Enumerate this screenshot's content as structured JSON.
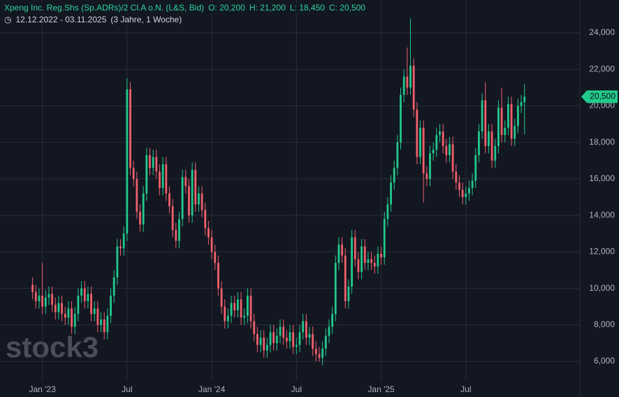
{
  "chart_data": {
    "type": "candlestick",
    "title": "Xpeng Inc. Reg.Shs (Sp.ADRs)/2 Cl.A  o.N. (L&S, Bid)",
    "ohlc_labels": [
      "O: 20,200",
      "H: 21,200",
      "L: 18,450",
      "C: 20,500"
    ],
    "period": "12.12.2022 - 03.11.2025",
    "period_note": "(3 Jahre, 1 Woche)",
    "watermark": "stock3",
    "last_price": {
      "value": 20500,
      "label": "20,500"
    },
    "up_color": "#22c98b",
    "down_color": "#f0606a",
    "grid": true,
    "ylim": [
      4050,
      25800
    ],
    "yticks": [
      {
        "value": 6000,
        "label": "6,000"
      },
      {
        "value": 8000,
        "label": "8,000"
      },
      {
        "value": 10000,
        "label": "10,000"
      },
      {
        "value": 12000,
        "label": "12,000"
      },
      {
        "value": 14000,
        "label": "14,000"
      },
      {
        "value": 16000,
        "label": "16,000"
      },
      {
        "value": 18000,
        "label": "18,000"
      },
      {
        "value": 20000,
        "label": "20,000"
      },
      {
        "value": 22000,
        "label": "22,000"
      },
      {
        "value": 24000,
        "label": "24,000"
      }
    ],
    "xlim": [
      -10,
      168
    ],
    "xticks": [
      {
        "value": 3,
        "label": "Jan '23"
      },
      {
        "value": 29,
        "label": "Jul"
      },
      {
        "value": 55,
        "label": "Jan '24"
      },
      {
        "value": 81,
        "label": "Jul"
      },
      {
        "value": 107,
        "label": "Jan '25"
      },
      {
        "value": 133,
        "label": "Jul"
      }
    ],
    "open": [
      10200,
      9800,
      9300,
      9600,
      9000,
      9500,
      9700,
      9100,
      8700,
      9200,
      8600,
      8400,
      8900,
      7900,
      8600,
      9600,
      10000,
      9300,
      9700,
      8600,
      8900,
      8000,
      8300,
      7600,
      8500,
      9600,
      10600,
      12300,
      12200,
      13000,
      20900,
      16600,
      16000,
      14200,
      13500,
      15200,
      17300,
      16600,
      17200,
      16400,
      15500,
      16800,
      15200,
      14500,
      13200,
      12600,
      13800,
      16100,
      15600,
      14000,
      16500,
      14600,
      15200,
      14300,
      13300,
      12800,
      12000,
      11400,
      10000,
      9000,
      8200,
      8500,
      9200,
      8800,
      9400,
      8400,
      8500,
      9600,
      8200,
      7500,
      6900,
      7300,
      6600,
      6900,
      7600,
      7000,
      7400,
      7900,
      7300,
      7100,
      7600,
      6800,
      6900,
      7600,
      8200,
      7300,
      7500,
      6700,
      6400,
      6200,
      6700,
      7400,
      7900,
      8600,
      11400,
      12400,
      11800,
      9300,
      10100,
      12800,
      11600,
      10900,
      12300,
      11400,
      11600,
      11400,
      11200,
      11900,
      11700,
      13800,
      14600,
      15800,
      16600,
      18000,
      20600,
      21600,
      21000,
      22200,
      19800,
      17200,
      18800,
      16300,
      16000,
      17400,
      17600,
      18400,
      18600,
      17800,
      17300,
      17900,
      16400,
      15800,
      15400,
      15000,
      15200,
      15500,
      15900,
      17300,
      18600,
      20300,
      17800,
      18600,
      17000,
      17800,
      19900,
      18400,
      18800,
      20100,
      18200,
      18900,
      20000,
      20200
    ],
    "high": [
      10600,
      10200,
      10000,
      11400,
      9900,
      10100,
      10100,
      9500,
      9600,
      9600,
      9000,
      9300,
      9300,
      9000,
      10000,
      10400,
      10400,
      10100,
      10100,
      9300,
      9300,
      8700,
      8700,
      8900,
      10000,
      11000,
      12700,
      12700,
      13400,
      21500,
      21300,
      17000,
      16400,
      14600,
      15600,
      17700,
      17700,
      17600,
      17600,
      16800,
      17200,
      17200,
      15600,
      14900,
      13600,
      14200,
      16500,
      16500,
      16000,
      16900,
      16900,
      15600,
      15600,
      14700,
      13700,
      13200,
      12400,
      11800,
      10400,
      9400,
      8900,
      9600,
      9600,
      9800,
      9800,
      8900,
      10000,
      10000,
      8600,
      7900,
      7700,
      7700,
      7300,
      8000,
      8000,
      7800,
      8300,
      8300,
      7700,
      8000,
      8000,
      7300,
      8000,
      8600,
      8600,
      7900,
      7900,
      7100,
      6800,
      7100,
      7800,
      8300,
      9000,
      11800,
      12800,
      12800,
      12200,
      10500,
      13200,
      13200,
      12000,
      12700,
      12700,
      12000,
      12000,
      11800,
      12300,
      12300,
      14200,
      15000,
      16200,
      17000,
      18400,
      21000,
      22000,
      23200,
      24800,
      22600,
      20200,
      19200,
      19200,
      16700,
      17800,
      18000,
      18800,
      19000,
      19000,
      18200,
      18300,
      18300,
      16800,
      16200,
      15800,
      15600,
      15900,
      16300,
      17700,
      19000,
      20700,
      21300,
      19000,
      19000,
      18200,
      20300,
      21000,
      19200,
      20500,
      20500,
      19300,
      20400,
      20600,
      21200
    ],
    "low": [
      9400,
      8900,
      8900,
      8600,
      8600,
      9100,
      8700,
      8300,
      8300,
      8200,
      8000,
      8000,
      7500,
      7500,
      8200,
      9200,
      8900,
      8900,
      8200,
      8200,
      7600,
      7600,
      7200,
      7200,
      8100,
      9200,
      10200,
      11800,
      11800,
      12600,
      16200,
      15600,
      13800,
      13100,
      13100,
      14800,
      16200,
      16200,
      16000,
      15100,
      15100,
      14800,
      14100,
      12800,
      12200,
      12200,
      13400,
      15200,
      13600,
      13600,
      14200,
      14200,
      13900,
      12900,
      12400,
      11600,
      11000,
      9600,
      8600,
      7800,
      7800,
      8100,
      8400,
      8400,
      8000,
      8000,
      8100,
      7800,
      7100,
      6500,
      6500,
      6200,
      6200,
      6500,
      6600,
      6600,
      7000,
      6900,
      6700,
      6700,
      6400,
      6400,
      6500,
      7200,
      6900,
      6900,
      6300,
      6000,
      6000,
      5800,
      6300,
      7000,
      7500,
      8200,
      11000,
      11400,
      8900,
      8900,
      9700,
      11200,
      10500,
      10500,
      11000,
      11000,
      11000,
      10800,
      10800,
      11300,
      11300,
      13400,
      14200,
      15400,
      16200,
      17600,
      20200,
      20600,
      20600,
      19400,
      16800,
      16800,
      14700,
      15600,
      15600,
      17000,
      17200,
      18000,
      17400,
      16900,
      16900,
      16000,
      15400,
      15000,
      14600,
      14600,
      14800,
      15100,
      15500,
      16900,
      18200,
      17400,
      17400,
      16600,
      16600,
      17400,
      18000,
      18000,
      18400,
      17800,
      17800,
      18500,
      19600,
      18450
    ],
    "close": [
      9800,
      9300,
      9600,
      9000,
      9500,
      9700,
      9100,
      8700,
      9200,
      8600,
      8400,
      8900,
      7900,
      8600,
      9600,
      10000,
      9300,
      9700,
      8600,
      8900,
      8000,
      8300,
      7600,
      8500,
      9600,
      10600,
      12300,
      12200,
      13000,
      20900,
      16600,
      16000,
      14200,
      13500,
      15200,
      17300,
      16600,
      17200,
      16400,
      15500,
      16800,
      15200,
      14500,
      13200,
      12600,
      13800,
      16100,
      15600,
      14000,
      16500,
      14600,
      15200,
      14300,
      13300,
      12800,
      12000,
      11400,
      10000,
      9000,
      8200,
      8500,
      9200,
      8800,
      9400,
      8400,
      8500,
      9600,
      8200,
      7500,
      6900,
      7300,
      6600,
      6900,
      7600,
      7000,
      7400,
      7900,
      7300,
      7100,
      7600,
      6800,
      6900,
      7600,
      8200,
      7300,
      7500,
      6700,
      6400,
      6200,
      6700,
      7400,
      7900,
      8600,
      11400,
      12400,
      11800,
      9300,
      10100,
      12800,
      11600,
      10900,
      12300,
      11400,
      11600,
      11400,
      11200,
      11900,
      11700,
      13800,
      14600,
      15800,
      16600,
      18000,
      20600,
      21600,
      21000,
      22200,
      19800,
      17200,
      18800,
      16300,
      16000,
      17400,
      17600,
      18400,
      18600,
      17800,
      17300,
      17900,
      16400,
      15800,
      15400,
      15000,
      15200,
      15500,
      15900,
      17300,
      18600,
      20300,
      17800,
      18600,
      17000,
      17800,
      19900,
      18400,
      18800,
      20100,
      18200,
      18900,
      20000,
      20200,
      20500
    ]
  }
}
